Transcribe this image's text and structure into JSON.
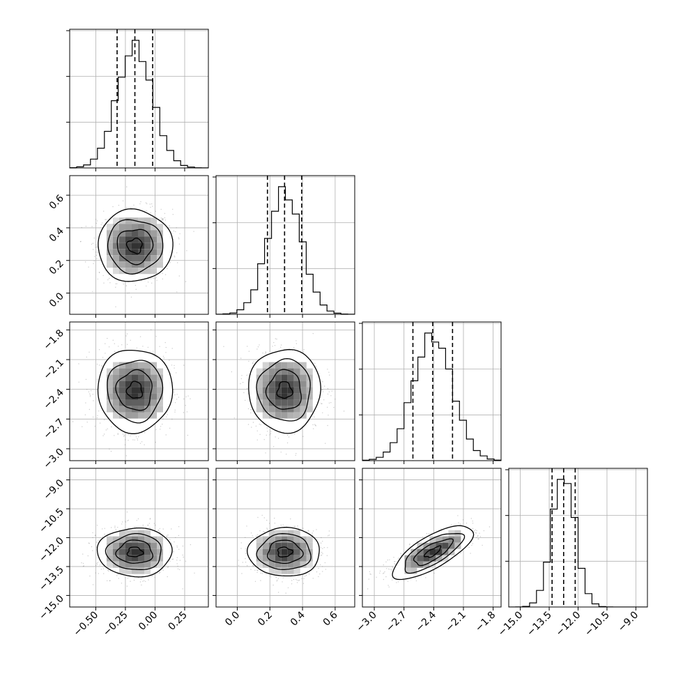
{
  "chart_data": {
    "type": "corner",
    "grid": true,
    "quantiles": [
      0.16,
      0.5,
      0.84
    ],
    "parameters": [
      {
        "mean": -0.17,
        "sd": 0.15,
        "quantiles": [
          -0.32,
          -0.17,
          -0.02
        ],
        "range": [
          -0.72,
          0.45
        ],
        "ticks": [
          -0.5,
          -0.25,
          0.0,
          0.25
        ],
        "tick_labels": [
          "−0.50",
          "−0.25",
          "0.00",
          "0.25"
        ]
      },
      {
        "mean": 0.29,
        "sd": 0.105,
        "quantiles": [
          0.185,
          0.29,
          0.395
        ],
        "range": [
          -0.13,
          0.72
        ],
        "ticks": [
          0.0,
          0.2,
          0.4,
          0.6
        ],
        "tick_labels": [
          "0.0",
          "0.2",
          "0.4",
          "0.6"
        ]
      },
      {
        "mean": -2.41,
        "sd": 0.2,
        "quantiles": [
          -2.61,
          -2.41,
          -2.21
        ],
        "range": [
          -3.12,
          -1.72
        ],
        "ticks": [
          -3.0,
          -2.7,
          -2.4,
          -2.1,
          -1.8
        ],
        "tick_labels": [
          "−3.0",
          "−2.7",
          "−2.4",
          "−2.1",
          "−1.8"
        ]
      },
      {
        "mean": -12.75,
        "sd": 0.6,
        "quantiles": [
          -13.35,
          -12.75,
          -12.15
        ],
        "range": [
          -15.6,
          -8.4
        ],
        "ticks": [
          -15.0,
          -13.5,
          -12.0,
          -10.5,
          -9.0
        ],
        "tick_labels": [
          "−15.0",
          "−13.5",
          "−12.0",
          "−10.5",
          "−9.0"
        ]
      }
    ],
    "correlations": {
      "2-3": 0.78
    }
  }
}
